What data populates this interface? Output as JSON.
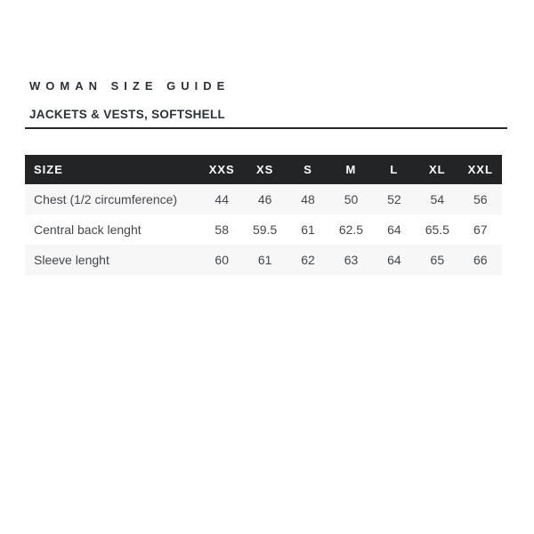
{
  "page": {
    "title": "WOMAN SIZE GUIDE",
    "subtitle": "JACKETS & VESTS, SOFTSHELL"
  },
  "size_table": {
    "columns": [
      "SIZE",
      "XXS",
      "XS",
      "S",
      "M",
      "L",
      "XL",
      "XXL"
    ],
    "rows": [
      {
        "label": "Chest (1/2 circumference)",
        "values": [
          "44",
          "46",
          "48",
          "50",
          "52",
          "54",
          "56"
        ]
      },
      {
        "label": "Central back lenght",
        "values": [
          "58",
          "59.5",
          "61",
          "62.5",
          "64",
          "65.5",
          "67"
        ]
      },
      {
        "label": "Sleeve lenght",
        "values": [
          "60",
          "61",
          "62",
          "63",
          "64",
          "65",
          "66"
        ]
      }
    ]
  },
  "colors": {
    "header_bg": "#232425",
    "header_text": "#ffffff",
    "stripe_bg": "#f7f7f7",
    "rule": "#26282a",
    "title_text": "#2c3037",
    "body_text": "#43464b"
  }
}
